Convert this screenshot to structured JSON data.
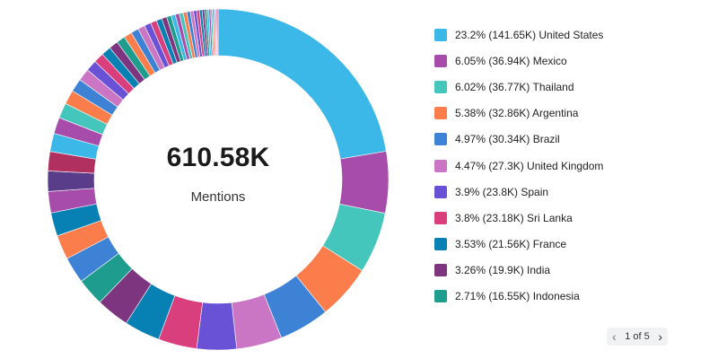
{
  "center": {
    "total": "610.58K",
    "metric": "Mentions"
  },
  "pager": {
    "text": "1 of 5",
    "prev_icon": "chevron-left-icon",
    "next_icon": "chevron-right-icon"
  },
  "legend": [
    {
      "label": "23.2% (141.65K) United States",
      "color": "#3bb8e8"
    },
    {
      "label": "6.05% (36.94K) Mexico",
      "color": "#a84cac"
    },
    {
      "label": "6.02% (36.77K) Thailand",
      "color": "#45c6bc"
    },
    {
      "label": "5.38% (32.86K) Argentina",
      "color": "#fb7d4c"
    },
    {
      "label": "4.97% (30.34K) Brazil",
      "color": "#3d82d4"
    },
    {
      "label": "4.47% (27.3K) United Kingdom",
      "color": "#cb76c4"
    },
    {
      "label": "3.9% (23.8K) Spain",
      "color": "#6a52d6"
    },
    {
      "label": "3.8% (23.18K) Sri Lanka",
      "color": "#da3f7d"
    },
    {
      "label": "3.53% (21.56K) France",
      "color": "#0780b4"
    },
    {
      "label": "3.26% (19.9K) India",
      "color": "#7c357e"
    },
    {
      "label": "2.71% (16.55K) Indonesia",
      "color": "#1e9c8e"
    }
  ],
  "chart_data": {
    "type": "pie",
    "total_label": "610.58K",
    "metric": "Mentions",
    "slices": [
      {
        "name": "United States",
        "percent": 23.2,
        "value": 141.65,
        "color": "#3bb8e8"
      },
      {
        "name": "Mexico",
        "percent": 6.05,
        "value": 36.94,
        "color": "#a84cac"
      },
      {
        "name": "Thailand",
        "percent": 6.02,
        "value": 36.77,
        "color": "#45c6bc"
      },
      {
        "name": "Argentina",
        "percent": 5.38,
        "value": 32.86,
        "color": "#fb7d4c"
      },
      {
        "name": "Brazil",
        "percent": 4.97,
        "value": 30.34,
        "color": "#3d82d4"
      },
      {
        "name": "United Kingdom",
        "percent": 4.47,
        "value": 27.3,
        "color": "#cb76c4"
      },
      {
        "name": "Spain",
        "percent": 3.9,
        "value": 23.8,
        "color": "#6a52d6"
      },
      {
        "name": "Sri Lanka",
        "percent": 3.8,
        "value": 23.18,
        "color": "#da3f7d"
      },
      {
        "name": "France",
        "percent": 3.53,
        "value": 21.56,
        "color": "#0780b4"
      },
      {
        "name": "India",
        "percent": 3.26,
        "value": 19.9,
        "color": "#7c357e"
      },
      {
        "name": "Indonesia",
        "percent": 2.71,
        "value": 16.55,
        "color": "#1e9c8e"
      },
      {
        "percent": 2.6,
        "color": "#3d82d4"
      },
      {
        "percent": 2.4,
        "color": "#fb7d4c"
      },
      {
        "percent": 2.3,
        "color": "#0780b4"
      },
      {
        "percent": 2.1,
        "color": "#a84cac"
      },
      {
        "percent": 2.0,
        "color": "#5a3d8a"
      },
      {
        "percent": 1.9,
        "color": "#b03060"
      },
      {
        "percent": 1.8,
        "color": "#3bb8e8"
      },
      {
        "percent": 1.6,
        "color": "#a84cac"
      },
      {
        "percent": 1.5,
        "color": "#45c6bc"
      },
      {
        "percent": 1.4,
        "color": "#fb7d4c"
      },
      {
        "percent": 1.3,
        "color": "#3d82d4"
      },
      {
        "percent": 1.2,
        "color": "#cb76c4"
      },
      {
        "percent": 1.1,
        "color": "#6a52d6"
      },
      {
        "percent": 1.0,
        "color": "#da3f7d"
      },
      {
        "percent": 0.95,
        "color": "#0780b4"
      },
      {
        "percent": 0.9,
        "color": "#7c357e"
      },
      {
        "percent": 0.85,
        "color": "#1e9c8e"
      },
      {
        "percent": 0.8,
        "color": "#fb7d4c"
      },
      {
        "percent": 0.75,
        "color": "#3d82d4"
      },
      {
        "percent": 0.7,
        "color": "#cb76c4"
      },
      {
        "percent": 0.65,
        "color": "#6a52d6"
      },
      {
        "percent": 0.6,
        "color": "#da3f7d"
      },
      {
        "percent": 0.55,
        "color": "#0780b4"
      },
      {
        "percent": 0.5,
        "color": "#7c357e"
      },
      {
        "percent": 0.45,
        "color": "#1e9c8e"
      },
      {
        "percent": 0.42,
        "color": "#3bb8e8"
      },
      {
        "percent": 0.4,
        "color": "#a84cac"
      },
      {
        "percent": 0.38,
        "color": "#45c6bc"
      },
      {
        "percent": 0.36,
        "color": "#fb7d4c"
      },
      {
        "percent": 0.34,
        "color": "#3d82d4"
      },
      {
        "percent": 0.32,
        "color": "#cb76c4"
      },
      {
        "percent": 0.3,
        "color": "#6a52d6"
      },
      {
        "percent": 0.28,
        "color": "#da3f7d"
      },
      {
        "percent": 0.26,
        "color": "#0780b4"
      },
      {
        "percent": 0.24,
        "color": "#7c357e"
      },
      {
        "percent": 0.22,
        "color": "#1e9c8e"
      },
      {
        "percent": 0.2,
        "color": "#3bb8e8"
      },
      {
        "percent": 0.18,
        "color": "#a84cac"
      },
      {
        "percent": 0.16,
        "color": "#45c6bc"
      },
      {
        "percent": 0.14,
        "color": "#fb7d4c"
      },
      {
        "percent": 0.12,
        "color": "#3d82d4"
      },
      {
        "percent": 0.1,
        "color": "#cb76c4"
      },
      {
        "percent": 0.1,
        "color": "#6a52d6"
      },
      {
        "percent": 0.1,
        "color": "#da3f7d"
      }
    ]
  }
}
